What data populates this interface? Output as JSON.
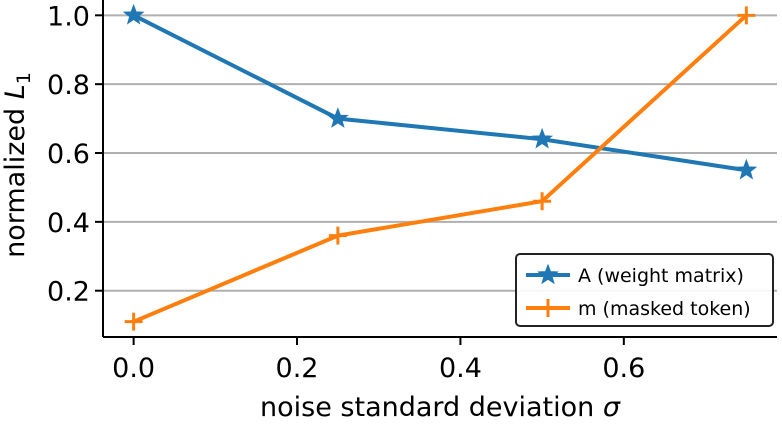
{
  "chart_data": {
    "type": "line",
    "x": [
      0.0,
      0.25,
      0.5,
      0.75
    ],
    "series": [
      {
        "name": "A (weight matrix)",
        "values": [
          1.0,
          0.7,
          0.64,
          0.55
        ],
        "color": "#1f77b4",
        "marker": "star"
      },
      {
        "name": "m (masked token)",
        "values": [
          0.11,
          0.36,
          0.46,
          1.0
        ],
        "color": "#ff7f0e",
        "marker": "plus"
      }
    ],
    "xlabel": "noise standard deviation",
    "xlabel_symbol": "σ",
    "ylabel": "normalized",
    "ylabel_symbol": "L",
    "ylabel_subscript": "1",
    "xticks": [
      "0.0",
      "0.2",
      "0.4",
      "0.6"
    ],
    "yticks": [
      "0.2",
      "0.4",
      "0.6",
      "0.8",
      "1.0"
    ],
    "xlim": [
      -0.0375,
      0.7875
    ],
    "ylim": [
      0.0655,
      1.0445
    ],
    "grid": "horizontal",
    "legend_position": "lower-right"
  }
}
